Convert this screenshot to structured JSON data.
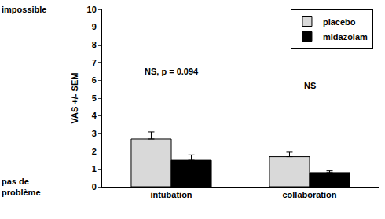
{
  "chart_data": {
    "type": "bar",
    "y_label": "VAS +/- SEM",
    "categories": [
      "intubation",
      "collaboration"
    ],
    "series": [
      {
        "name": "placebo",
        "color": "#d9d9d9",
        "values": [
          2.7,
          1.7
        ],
        "error": [
          0.4,
          0.25
        ]
      },
      {
        "name": "midazolam",
        "color": "#000000",
        "values": [
          1.5,
          0.8
        ],
        "error": [
          0.3,
          0.1
        ]
      }
    ],
    "ylim": [
      0,
      10
    ],
    "yticks": [
      0,
      1,
      2,
      3,
      4,
      5,
      6,
      7,
      8,
      9,
      10
    ],
    "grid": false,
    "legend": "top-right",
    "annotations": [
      {
        "text": "NS, p = 0.094",
        "category": "intubation",
        "y": 6.5
      },
      {
        "text": "NS",
        "category": "collaboration",
        "y": 5.7
      },
      {
        "text": "impossible",
        "y": 10
      },
      {
        "text": "pas de problème",
        "y": 0
      }
    ]
  }
}
